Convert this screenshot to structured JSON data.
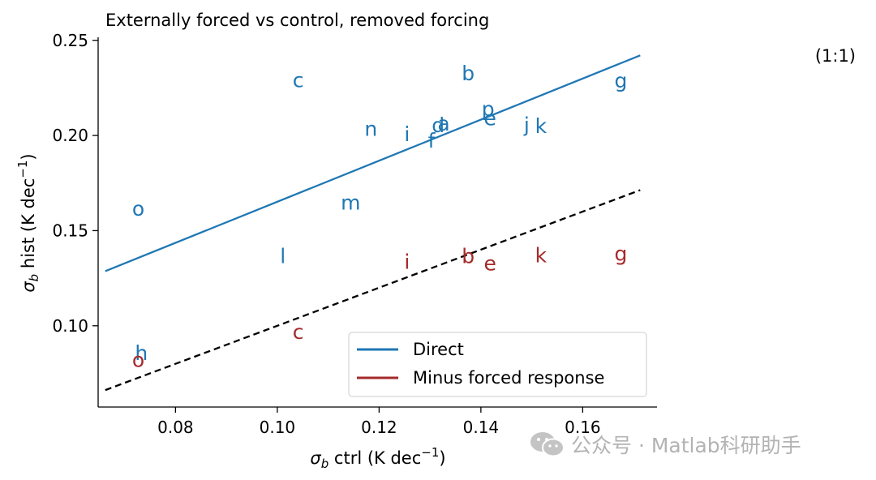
{
  "chart_data": {
    "type": "scatter",
    "title": "Externally forced vs control, removed forcing",
    "xlabel": {
      "symbol": "σ",
      "sub": "b",
      "text": " ctrl (K dec",
      "sup": "−1",
      "close": ")"
    },
    "ylabel": {
      "symbol": "σ",
      "sub": "b",
      "text": " hist (K dec",
      "sup": "−1",
      "close": ")"
    },
    "xlim": [
      0.0648,
      0.1746
    ],
    "ylim": [
      0.0573,
      0.2516
    ],
    "xticks": [
      0.08,
      0.1,
      0.12,
      0.14,
      0.16
    ],
    "xtick_labels": [
      "0.08",
      "0.10",
      "0.12",
      "0.14",
      "0.16"
    ],
    "yticks": [
      0.1,
      0.15,
      0.2,
      0.25
    ],
    "ytick_labels": [
      "0.10",
      "0.15",
      "0.20",
      "0.25"
    ],
    "annotation": "(1:1)",
    "legend": {
      "position": "lower-right",
      "entries": [
        {
          "label": "Direct",
          "color": "#1f77b4"
        },
        {
          "label": "Minus forced response",
          "color": "#a52a2a"
        }
      ]
    },
    "series": [
      {
        "name": "Direct",
        "color": "#1f77b4",
        "points": [
          {
            "label": "a",
            "x": 0.1327,
            "y": 0.2065
          },
          {
            "label": "b",
            "x": 0.1375,
            "y": 0.2329
          },
          {
            "label": "c",
            "x": 0.1041,
            "y": 0.2293
          },
          {
            "label": "d",
            "x": 0.1316,
            "y": 0.2055
          },
          {
            "label": "e",
            "x": 0.1418,
            "y": 0.2093
          },
          {
            "label": "f",
            "x": 0.1303,
            "y": 0.1975
          },
          {
            "label": "g",
            "x": 0.1675,
            "y": 0.2291
          },
          {
            "label": "h",
            "x": 0.0733,
            "y": 0.0858
          },
          {
            "label": "i",
            "x": 0.1255,
            "y": 0.2009
          },
          {
            "label": "j",
            "x": 0.149,
            "y": 0.2057
          },
          {
            "label": "k",
            "x": 0.1518,
            "y": 0.2052
          },
          {
            "label": "l",
            "x": 0.1011,
            "y": 0.1368
          },
          {
            "label": "m",
            "x": 0.1144,
            "y": 0.1649
          },
          {
            "label": "n",
            "x": 0.1184,
            "y": 0.2036
          },
          {
            "label": "o",
            "x": 0.0727,
            "y": 0.1616
          },
          {
            "label": "p",
            "x": 0.1414,
            "y": 0.2141
          }
        ]
      },
      {
        "name": "Minus forced response",
        "color": "#a52a2a",
        "points": [
          {
            "label": "b",
            "x": 0.1375,
            "y": 0.1367
          },
          {
            "label": "c",
            "x": 0.1041,
            "y": 0.097
          },
          {
            "label": "e",
            "x": 0.1418,
            "y": 0.133
          },
          {
            "label": "g",
            "x": 0.1675,
            "y": 0.1381
          },
          {
            "label": "i",
            "x": 0.1255,
            "y": 0.1338
          },
          {
            "label": "k",
            "x": 0.1518,
            "y": 0.1372
          },
          {
            "label": "o",
            "x": 0.0727,
            "y": 0.0823
          }
        ]
      }
    ],
    "lines": [
      {
        "name": "Direct fit",
        "color": "#1f77b4",
        "style": "solid",
        "x": [
          0.0662,
          0.1713
        ],
        "y": [
          0.1287,
          0.2421
        ]
      },
      {
        "name": "1:1 reference",
        "color": "#000000",
        "style": "dashed",
        "x": [
          0.0662,
          0.1713
        ],
        "y": [
          0.0662,
          0.1713
        ]
      }
    ]
  },
  "watermark": {
    "text": "公众号 · Matlab科研助手",
    "icon": "wechat-icon",
    "color": "#b3b3b3"
  }
}
